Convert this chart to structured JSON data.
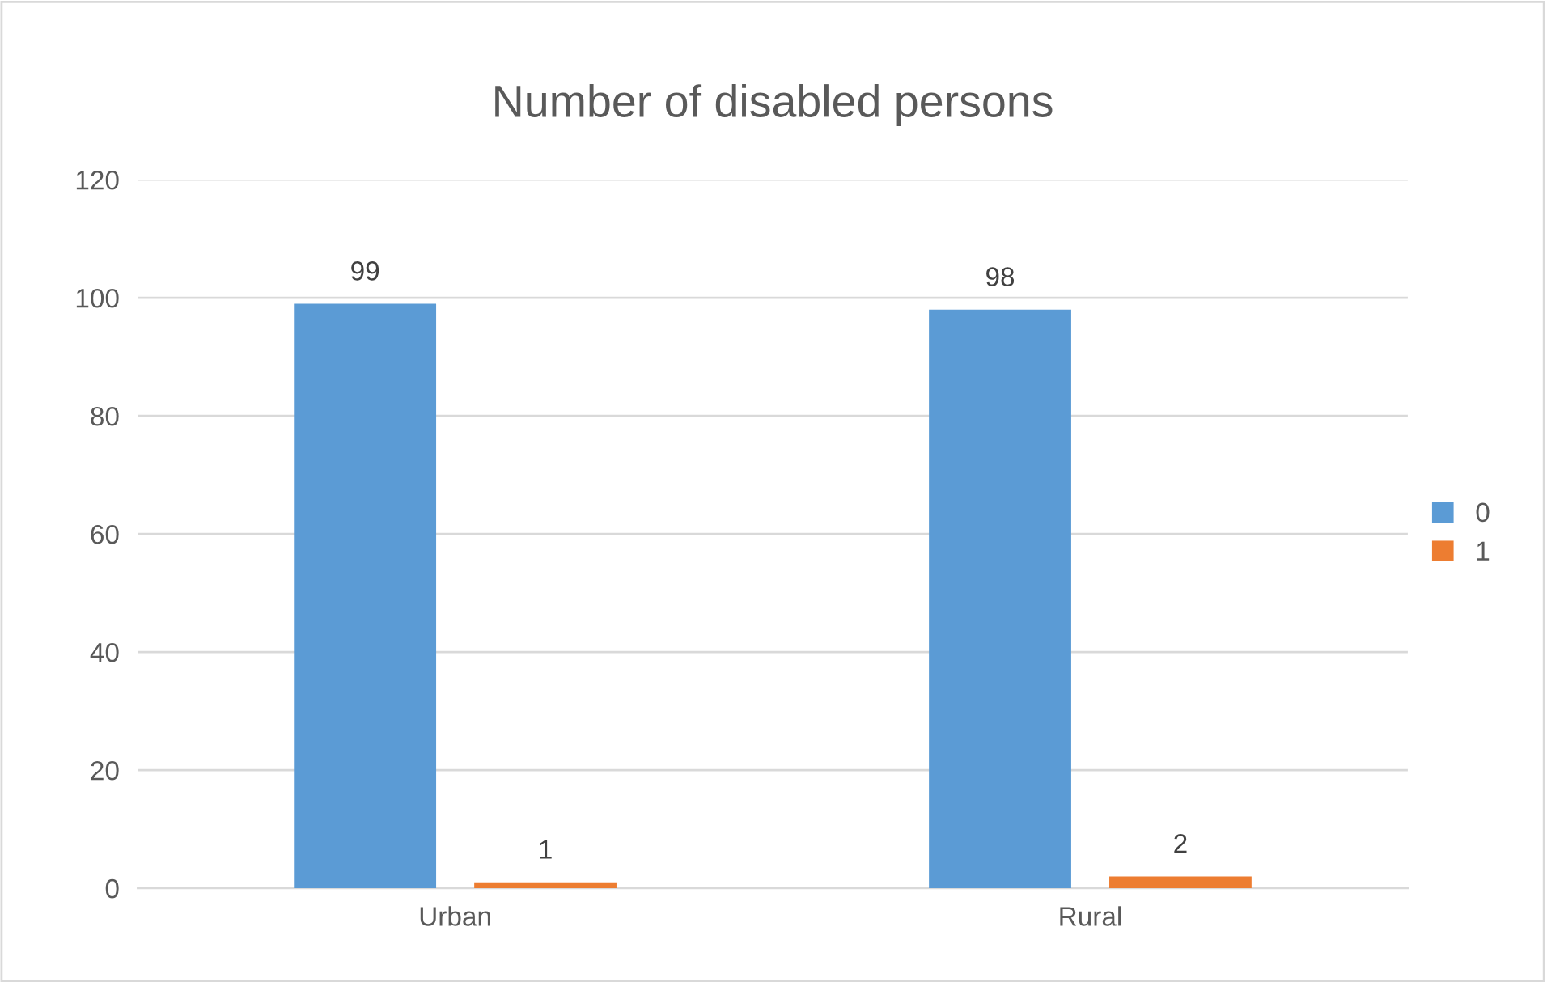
{
  "chart_data": {
    "type": "bar",
    "title": "Number of disabled persons",
    "categories": [
      "Urban",
      "Rural"
    ],
    "series": [
      {
        "name": "0",
        "color": "#5b9bd5",
        "values": [
          99,
          98
        ]
      },
      {
        "name": "1",
        "color": "#ed7d31",
        "values": [
          1,
          2
        ]
      }
    ],
    "ylim": [
      0,
      120
    ],
    "yticks": [
      0,
      20,
      40,
      60,
      80,
      100,
      120
    ],
    "grid": "y",
    "legend": "right",
    "data_labels": true
  }
}
